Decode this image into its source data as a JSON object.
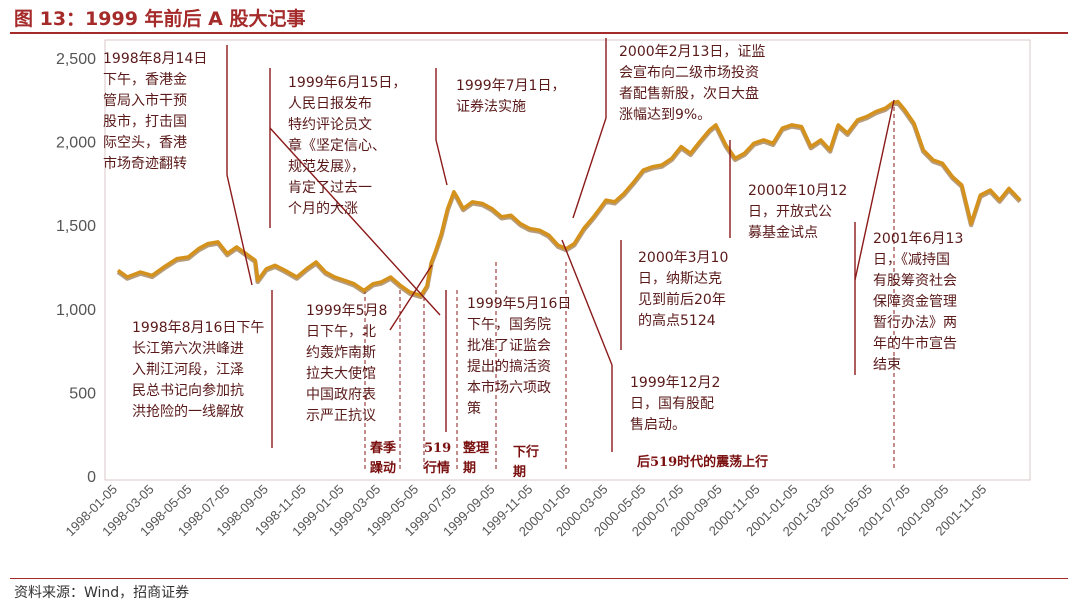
{
  "figure": {
    "title": "图 13：1999 年前后 A 股大记事",
    "source": "资料来源：Wind，招商证券"
  },
  "colors": {
    "accent": "#a52a2a",
    "line": "#d4921c",
    "line_shadow": "#7a4a10",
    "annotation": "#8b1a1a"
  },
  "chart_data": {
    "type": "line",
    "title": "",
    "xlabel": "",
    "ylabel": "",
    "ylim": [
      0,
      2500
    ],
    "yticks": [
      0,
      500,
      1000,
      1500,
      2000,
      2500
    ],
    "ytick_labels": [
      "0",
      "500",
      "1,000",
      "1,500",
      "2,000",
      "2,500"
    ],
    "xlim": [
      "1998-01-05",
      "2001-12-31"
    ],
    "xticks": [
      "1998-01-05",
      "1998-03-05",
      "1998-05-05",
      "1998-07-05",
      "1998-09-05",
      "1998-11-05",
      "1999-01-05",
      "1999-03-05",
      "1999-05-05",
      "1999-07-05",
      "1999-09-05",
      "1999-11-05",
      "2000-01-05",
      "2000-03-05",
      "2000-05-05",
      "2000-07-05",
      "2000-09-05",
      "2000-11-05",
      "2001-01-05",
      "2001-03-05",
      "2001-05-05",
      "2001-07-05",
      "2001-09-05",
      "2001-11-05"
    ],
    "grid": false,
    "series": [
      {
        "x": [
          "1998-01-05",
          "1998-01-20",
          "1998-02-10",
          "1998-03-01",
          "1998-03-20",
          "1998-04-10",
          "1998-04-28",
          "1998-05-15",
          "1998-05-30",
          "1998-06-15",
          "1998-06-30",
          "1998-07-15",
          "1998-07-30",
          "1998-08-14",
          "1998-08-18",
          "1998-09-01",
          "1998-09-15",
          "1998-10-01",
          "1998-10-20",
          "1998-11-05",
          "1998-11-20",
          "1998-12-05",
          "1998-12-20",
          "1999-01-05",
          "1999-01-20",
          "1999-02-05",
          "1999-02-20",
          "1999-03-05",
          "1999-03-20",
          "1999-04-05",
          "1999-04-20",
          "1999-05-08",
          "1999-05-18",
          "1999-05-25",
          "1999-06-01",
          "1999-06-10",
          "1999-06-20",
          "1999-06-30",
          "1999-07-05",
          "1999-07-15",
          "1999-07-30",
          "1999-08-15",
          "1999-08-30",
          "1999-09-15",
          "1999-09-30",
          "1999-10-15",
          "1999-10-30",
          "1999-11-15",
          "1999-11-30",
          "1999-12-15",
          "1999-12-28",
          "2000-01-10",
          "2000-01-25",
          "2000-02-10",
          "2000-02-20",
          "2000-03-01",
          "2000-03-15",
          "2000-03-30",
          "2000-04-15",
          "2000-04-30",
          "2000-05-15",
          "2000-05-30",
          "2000-06-15",
          "2000-06-30",
          "2000-07-15",
          "2000-07-30",
          "2000-08-15",
          "2000-08-25",
          "2000-09-10",
          "2000-09-25",
          "2000-10-10",
          "2000-10-25",
          "2000-11-10",
          "2000-11-25",
          "2000-12-10",
          "2000-12-25",
          "2001-01-10",
          "2001-01-25",
          "2001-02-10",
          "2001-02-25",
          "2001-03-10",
          "2001-03-25",
          "2001-04-10",
          "2001-04-25",
          "2001-05-10",
          "2001-05-25",
          "2001-06-05",
          "2001-06-14",
          "2001-06-25",
          "2001-07-10",
          "2001-07-25",
          "2001-08-10",
          "2001-08-25",
          "2001-09-10",
          "2001-09-25",
          "2001-10-10",
          "2001-10-25",
          "2001-11-10",
          "2001-11-25",
          "2001-12-10",
          "2001-12-28"
        ],
        "values": [
          1230,
          1190,
          1220,
          1200,
          1250,
          1300,
          1310,
          1360,
          1390,
          1400,
          1330,
          1370,
          1330,
          1290,
          1170,
          1240,
          1260,
          1230,
          1190,
          1240,
          1280,
          1220,
          1190,
          1170,
          1150,
          1110,
          1150,
          1160,
          1190,
          1140,
          1100,
          1080,
          1140,
          1280,
          1350,
          1450,
          1600,
          1700,
          1670,
          1600,
          1640,
          1630,
          1600,
          1550,
          1560,
          1510,
          1480,
          1470,
          1440,
          1380,
          1360,
          1390,
          1480,
          1550,
          1600,
          1650,
          1640,
          1690,
          1760,
          1830,
          1850,
          1860,
          1900,
          1970,
          1930,
          2000,
          2070,
          2100,
          1980,
          1900,
          1930,
          1990,
          2010,
          1990,
          2080,
          2100,
          2090,
          1970,
          2010,
          1950,
          2100,
          2050,
          2130,
          2150,
          2180,
          2200,
          2230,
          2240,
          2190,
          2110,
          1950,
          1890,
          1870,
          1790,
          1740,
          1510,
          1680,
          1710,
          1650,
          1720,
          1650
        ]
      }
    ],
    "annotations": [
      {
        "text": [
          "1998年8月14日",
          "下午，香港金",
          "管局入市干预",
          "股市，打击国",
          "际空头，香港",
          "市场奇迹翻转"
        ],
        "date": "1998-08-14"
      },
      {
        "text": [
          "1998年8月16日下午",
          "长江第六次洪峰进",
          "入荆江河段，江泽",
          "民总书记向参加抗",
          "洪抢险的一线解放"
        ],
        "date": "1998-08-16"
      },
      {
        "text": [
          "1999年6月15日，",
          "人民日报发布",
          "特约评论员文",
          "章《坚定信心、",
          "规范发展》，",
          "肯定了过去一",
          "个月的大涨"
        ],
        "date": "1999-06-15"
      },
      {
        "text": [
          "1999年5月8",
          "日下午，北",
          "约轰炸南斯",
          "拉夫大使馆",
          "中国政府表",
          "示严正抗议"
        ],
        "date": "1999-05-08"
      },
      {
        "text": [
          "1999年7月1日，",
          "证券法实施"
        ],
        "date": "1999-07-01"
      },
      {
        "text": [
          "1999年5月16日",
          "下午，国务院",
          "批准了证监会",
          "提出的搞活资",
          "本市场六项政",
          "策"
        ],
        "date": "1999-05-16"
      },
      {
        "text": [
          "2000年2月13日，证监",
          "会宣布向二级市场投资",
          "者配售新股，次日大盘",
          "涨幅达到9%。"
        ],
        "date": "2000-02-13"
      },
      {
        "text": [
          "2000年3月10",
          "日，纳斯达克",
          "见到前后20年",
          "的高点5124"
        ],
        "date": "2000-03-10"
      },
      {
        "text": [
          "1999年12月2",
          "日，国有股配",
          "售启动。"
        ],
        "date": "1999-12-02"
      },
      {
        "text": [
          "2000年10月12",
          "日，开放式公",
          "募基金试点"
        ],
        "date": "2000-10-12"
      },
      {
        "text": [
          "2001年6月13",
          "日，《减持国",
          "有股筹资社会",
          "保障资金管理",
          "暂行办法》两",
          "年的牛市宣告",
          "结束"
        ],
        "date": "2001-06-13"
      }
    ],
    "phases": [
      {
        "text": [
          "春季",
          "躁动"
        ]
      },
      {
        "text": [
          "519",
          "行情"
        ]
      },
      {
        "text": [
          "整理",
          "期"
        ]
      },
      {
        "text": [
          "下行",
          "期"
        ]
      },
      {
        "text": [
          "后519时代的震荡上行"
        ]
      }
    ]
  }
}
